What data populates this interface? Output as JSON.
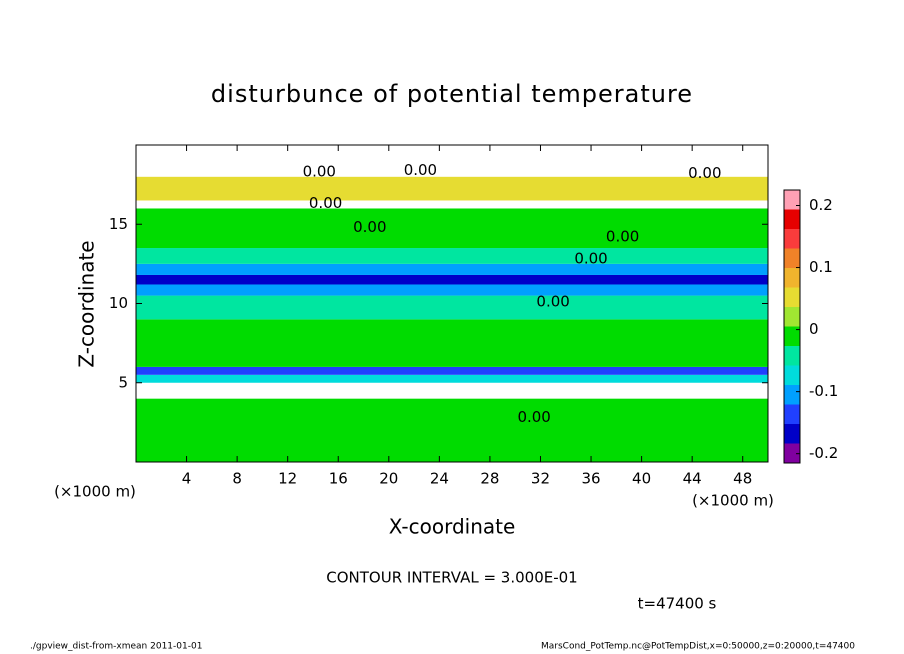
{
  "chart_data": {
    "type": "contour",
    "title": "disturbunce of potential temperature",
    "xlabel": "X-coordinate",
    "ylabel": "Z-coordinate",
    "x_unit_label": "(×1000 m)",
    "y_unit_label": "(×1000 m)",
    "xlim": [
      0,
      50
    ],
    "ylim": [
      0,
      20
    ],
    "xticks": [
      4,
      8,
      12,
      16,
      20,
      24,
      28,
      32,
      36,
      40,
      44,
      48
    ],
    "yticks": [
      5,
      10,
      15
    ],
    "z_edges": [
      0,
      4,
      5,
      5.5,
      6,
      9,
      10.5,
      11.2,
      11.8,
      12.5,
      13.5,
      16,
      16.5,
      18,
      20
    ],
    "values": [
      0,
      0.25,
      -0.08,
      -0.15,
      0,
      -0.03,
      -0.12,
      -0.18,
      -0.1,
      -0.05,
      0,
      0.25,
      0.05,
      0.25
    ],
    "colorbar": {
      "clim": [
        -0.215,
        0.225
      ],
      "ticks": [
        0.2,
        0.1,
        0,
        -0.1,
        -0.2
      ],
      "colors": [
        "#8000a0",
        "#0000c8",
        "#2040ff",
        "#00a0ff",
        "#00dcdc",
        "#00e6a0",
        "#00dc00",
        "#a0e632",
        "#e6dc32",
        "#f0b42d",
        "#f08228",
        "#fa3c3c",
        "#e60000",
        "#ffa0b4"
      ]
    },
    "contour_labels": [
      {
        "text": "0.00",
        "x": 14.5,
        "z": 18.3
      },
      {
        "text": "0.00",
        "x": 22.5,
        "z": 18.4
      },
      {
        "text": "0.00",
        "x": 15,
        "z": 16.3
      },
      {
        "text": "0.00",
        "x": 18.5,
        "z": 14.8
      },
      {
        "text": "0.00",
        "x": 38.5,
        "z": 14.2
      },
      {
        "text": "0.00",
        "x": 36,
        "z": 12.8
      },
      {
        "text": "0.00",
        "x": 33,
        "z": 10.1
      },
      {
        "text": "0.00",
        "x": 45,
        "z": 18.2
      },
      {
        "text": "0.00",
        "x": 31.5,
        "z": 2.8
      }
    ],
    "contour_interval_label": "CONTOUR INTERVAL = 3.000E-01",
    "time_label": "t=47400 s",
    "footer_left": "./gpview_dist-from-xmean   2011-01-01",
    "footer_right": "MarsCond_PotTemp.nc@PotTempDist,x=0:50000,z=0:20000,t=47400"
  }
}
